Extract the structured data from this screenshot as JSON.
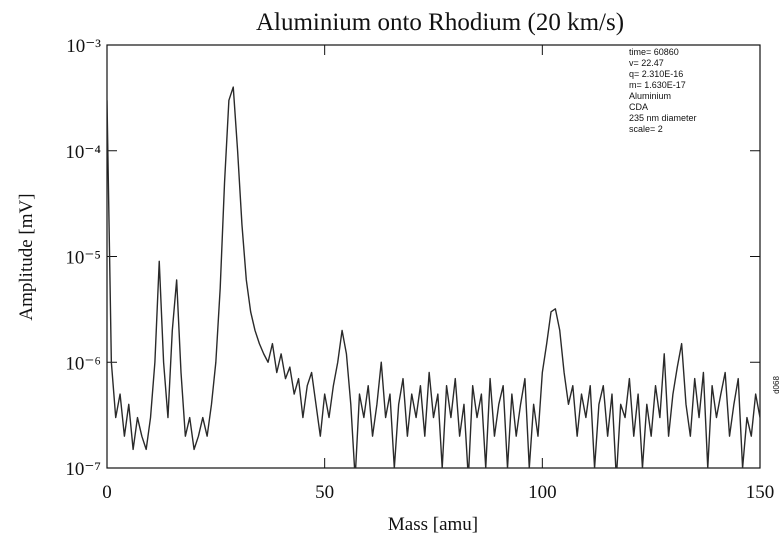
{
  "chart_data": {
    "type": "line",
    "title": "Aluminium onto Rhodium (20 km/s)",
    "x_label": "Mass  [amu]",
    "y_label": "Amplitude [mV]",
    "log_y": true,
    "annotations": [
      "time= 60860",
      "v= 22.47",
      "q= 2.310E-16",
      "m= 1.630E-17",
      "Aluminium",
      "CDA",
      "235 nm diameter",
      "scale= 2"
    ],
    "side_note": "d068",
    "xlim": [
      0,
      150
    ],
    "xticks": [
      0,
      50,
      100,
      150
    ],
    "ylim": [
      1e-07,
      0.001
    ],
    "yticks": [
      {
        "value": 1e-07,
        "label": "10⁻⁷"
      },
      {
        "value": 1e-06,
        "label": "10⁻⁶"
      },
      {
        "value": 1e-05,
        "label": "10⁻⁵"
      },
      {
        "value": 0.0001,
        "label": "10⁻⁴"
      },
      {
        "value": 0.001,
        "label": "10⁻³"
      }
    ],
    "series": [
      {
        "color": "#2a2a2a",
        "x": [
          0,
          1,
          2,
          3,
          4,
          5,
          6,
          7,
          8,
          9,
          10,
          11,
          12,
          13,
          14,
          15,
          16,
          17,
          18,
          19,
          20,
          21,
          22,
          23,
          24,
          25,
          26,
          27,
          28,
          29,
          30,
          31,
          32,
          33,
          34,
          35,
          36,
          37,
          38,
          39,
          40,
          41,
          42,
          43,
          44,
          45,
          46,
          47,
          48,
          49,
          50,
          51,
          52,
          53,
          54,
          55,
          56,
          57,
          58,
          59,
          60,
          61,
          62,
          63,
          64,
          65,
          66,
          67,
          68,
          69,
          70,
          71,
          72,
          73,
          74,
          75,
          76,
          77,
          78,
          79,
          80,
          81,
          82,
          83,
          84,
          85,
          86,
          87,
          88,
          89,
          90,
          91,
          92,
          93,
          94,
          95,
          96,
          97,
          98,
          99,
          100,
          101,
          102,
          103,
          104,
          105,
          106,
          107,
          108,
          109,
          110,
          111,
          112,
          113,
          114,
          115,
          116,
          117,
          118,
          119,
          120,
          121,
          122,
          123,
          124,
          125,
          126,
          127,
          128,
          129,
          130,
          131,
          132,
          133,
          134,
          135,
          136,
          137,
          138,
          139,
          140,
          141,
          142,
          143,
          144,
          145,
          146,
          147,
          148,
          149,
          150
        ],
        "values": [
          0.0003,
          1e-06,
          3e-07,
          5e-07,
          2e-07,
          4e-07,
          1.5e-07,
          3e-07,
          2e-07,
          1.5e-07,
          3e-07,
          1e-06,
          9e-06,
          1e-06,
          3e-07,
          2e-06,
          6e-06,
          8e-07,
          2e-07,
          3e-07,
          1.5e-07,
          2e-07,
          3e-07,
          2e-07,
          4e-07,
          1e-06,
          5e-06,
          5e-05,
          0.0003,
          0.0004,
          0.0001,
          2e-05,
          6e-06,
          3e-06,
          2e-06,
          1.5e-06,
          1.2e-06,
          1e-06,
          1.5e-06,
          8e-07,
          1.2e-06,
          7e-07,
          9e-07,
          5e-07,
          7e-07,
          3e-07,
          6e-07,
          8e-07,
          4e-07,
          2e-07,
          5e-07,
          3e-07,
          6e-07,
          1e-06,
          2e-06,
          1.2e-06,
          4e-07,
          8e-08,
          5e-07,
          3e-07,
          6e-07,
          2e-07,
          4e-07,
          1e-06,
          3e-07,
          5e-07,
          1e-07,
          4e-07,
          7e-07,
          2e-07,
          5e-07,
          3e-07,
          6e-07,
          2e-07,
          8e-07,
          3e-07,
          5e-07,
          1e-07,
          6e-07,
          3e-07,
          7e-07,
          2e-07,
          4e-07,
          8e-08,
          6e-07,
          3e-07,
          5e-07,
          1e-07,
          7e-07,
          2e-07,
          4e-07,
          6e-07,
          1e-07,
          5e-07,
          2e-07,
          4e-07,
          7e-07,
          1e-07,
          4e-07,
          2e-07,
          8e-07,
          1.5e-06,
          3e-06,
          3.2e-06,
          2e-06,
          8e-07,
          4e-07,
          6e-07,
          2e-07,
          5e-07,
          3e-07,
          6e-07,
          1e-07,
          4e-07,
          6e-07,
          2e-07,
          5e-07,
          8e-08,
          4e-07,
          3e-07,
          7e-07,
          2e-07,
          5e-07,
          1e-07,
          4e-07,
          2e-07,
          6e-07,
          3e-07,
          1.2e-06,
          2e-07,
          5e-07,
          9e-07,
          1.5e-06,
          4e-07,
          2e-07,
          7e-07,
          3e-07,
          8e-07,
          1e-07,
          6e-07,
          3e-07,
          5e-07,
          8e-07,
          2e-07,
          4e-07,
          7e-07,
          1e-07,
          3e-07,
          2e-07,
          5e-07,
          3e-07
        ]
      }
    ]
  }
}
